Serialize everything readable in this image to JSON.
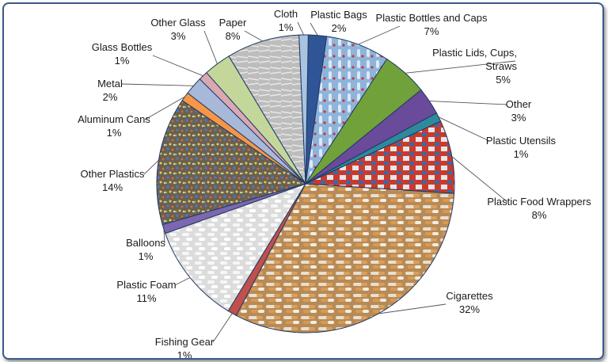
{
  "chart_data": {
    "type": "pie",
    "title": "",
    "slices": [
      {
        "name": "Plastic Bags",
        "label": "2%",
        "value": 2,
        "color": "#2f5597"
      },
      {
        "name": "Plastic Bottles and Caps",
        "label": "7%",
        "value": 7,
        "color": "#9dc3e6"
      },
      {
        "name": "Plastic Lids, Cups, Straws",
        "label": "5%",
        "value": 5,
        "color": "#70a13a"
      },
      {
        "name": "Other",
        "label": "3%",
        "value": 3,
        "color": "#6a4a9a"
      },
      {
        "name": "Plastic Utensils",
        "label": "1%",
        "value": 1,
        "color": "#2e8a9a"
      },
      {
        "name": "Plastic Food Wrappers",
        "label": "8%",
        "value": 8,
        "color": "#c0392b"
      },
      {
        "name": "Cigarettes",
        "label": "32%",
        "value": 32,
        "color": "#c8965c"
      },
      {
        "name": "Fishing Gear",
        "label": "1%",
        "value": 1,
        "color": "#c0504d"
      },
      {
        "name": "Plastic Foam",
        "label": "11%",
        "value": 11,
        "color": "#e8e8e8"
      },
      {
        "name": "Balloons",
        "label": "1%",
        "value": 1,
        "color": "#7b68ae"
      },
      {
        "name": "Other Plastics",
        "label": "14%",
        "value": 14,
        "color": "#7a6a50"
      },
      {
        "name": "Aluminum Cans",
        "label": "1%",
        "value": 1,
        "color": "#f79646"
      },
      {
        "name": "Metal",
        "label": "2%",
        "value": 2,
        "color": "#a8b8d8"
      },
      {
        "name": "Glass Bottles",
        "label": "1%",
        "value": 1,
        "color": "#d9a8b0"
      },
      {
        "name": "Other Glass",
        "label": "3%",
        "value": 3,
        "color": "#c4d79b"
      },
      {
        "name": "Paper",
        "label": "8%",
        "value": 8,
        "color": "#c0c0c0"
      },
      {
        "name": "Cloth",
        "label": "1%",
        "value": 1,
        "color": "#a9c4e0"
      }
    ]
  }
}
